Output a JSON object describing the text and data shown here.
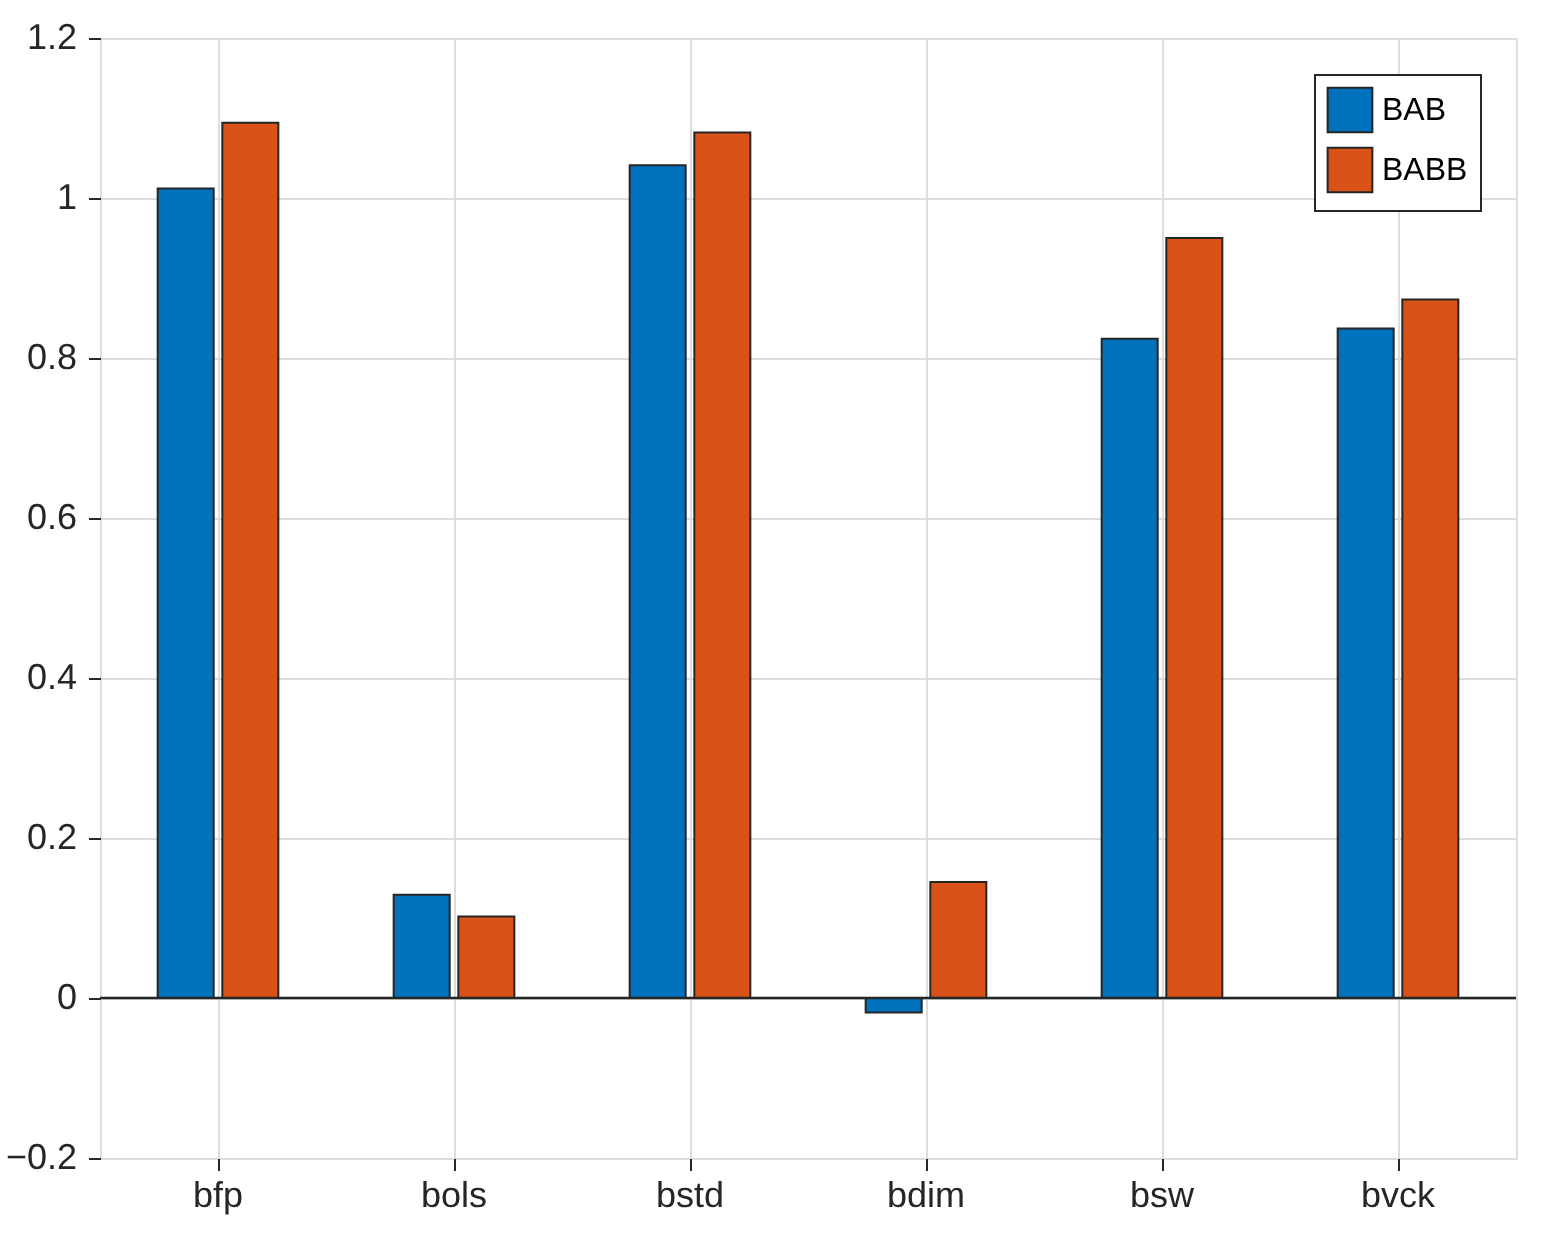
{
  "chart_data": {
    "type": "bar",
    "categories": [
      "bfp",
      "bols",
      "bstd",
      "bdim",
      "bsw",
      "bvck"
    ],
    "series": [
      {
        "name": "BAB",
        "color": "#0072bd",
        "values": [
          1.012,
          0.129,
          1.041,
          -0.018,
          0.824,
          0.837
        ]
      },
      {
        "name": "BABB",
        "color": "#d95319",
        "values": [
          1.094,
          0.102,
          1.082,
          0.145,
          0.95,
          0.873
        ]
      }
    ],
    "ylim": [
      -0.2,
      1.2
    ],
    "yticks": [
      -0.2,
      0,
      0.2,
      0.4,
      0.6,
      0.8,
      1,
      1.2
    ],
    "grid": true,
    "legend": "top right",
    "ref_lines": [
      {
        "axis": "y",
        "value": 0,
        "color": "#262626"
      }
    ]
  }
}
